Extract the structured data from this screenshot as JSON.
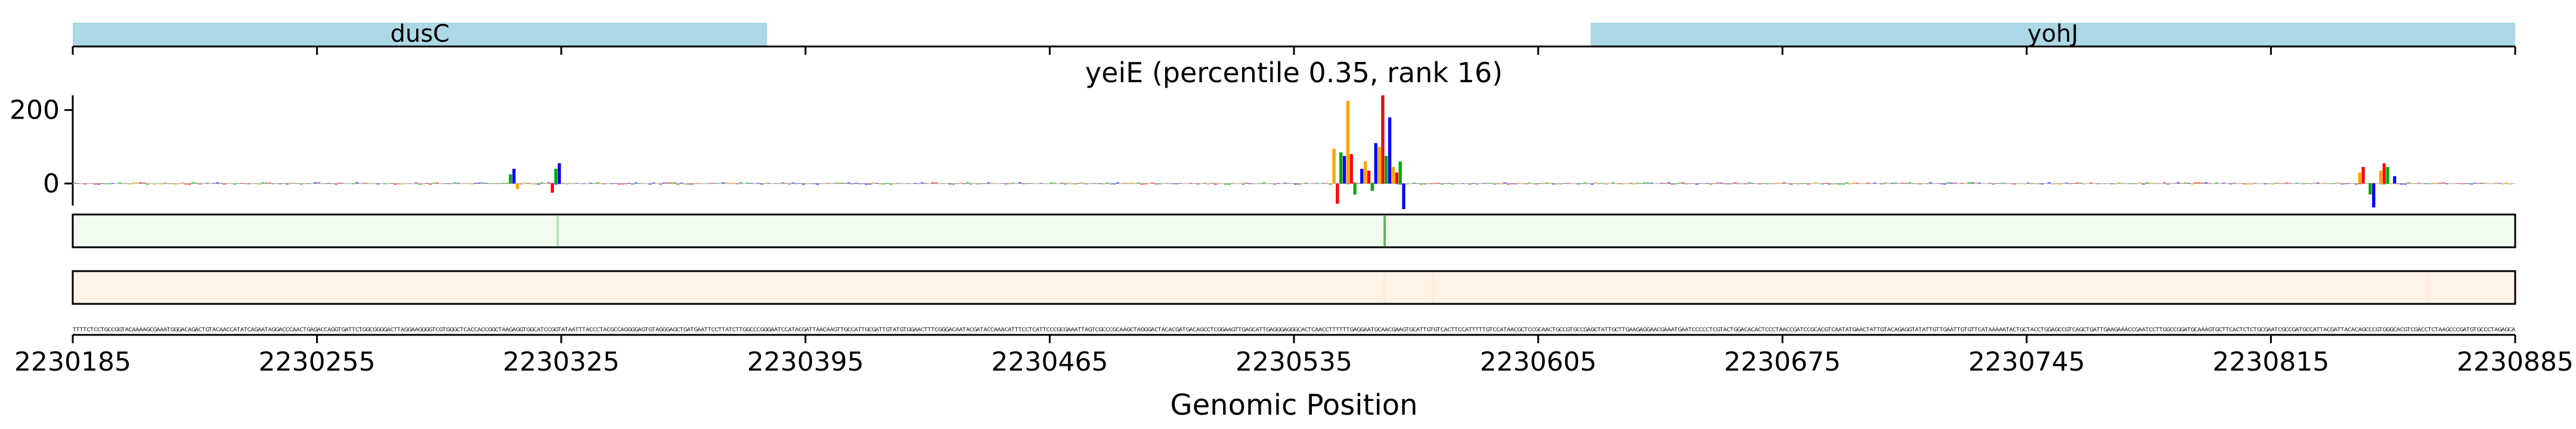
{
  "chart_data": {
    "type": "sequence-attribution-track",
    "title": "yeiE (percentile 0.35, rank 16)",
    "xlabel": "Genomic Position",
    "xlim": [
      2230185,
      2230885
    ],
    "x_ticks": [
      "2230185",
      "2230255",
      "2230325",
      "2230395",
      "2230465",
      "2230535",
      "2230605",
      "2230675",
      "2230745",
      "2230815",
      "2230885"
    ],
    "genes": [
      {
        "name": "yohJ",
        "start": 2230620,
        "end": 2230885,
        "color": "#add8e6"
      },
      {
        "name": "dusC",
        "start": 2230185,
        "end": 2230384,
        "color": "#add8e6"
      }
    ],
    "attribution": {
      "ylim": [
        -60,
        240
      ],
      "y_ticks": [
        "200",
        "0"
      ],
      "y_tick_values": [
        200,
        0
      ],
      "base_colors": {
        "A": "#00aa00",
        "C": "#0000ff",
        "G": "#ffa500",
        "T": "#ff0000"
      },
      "peaks": [
        {
          "x": 2230310,
          "y": 25
        },
        {
          "x": 2230311,
          "y": 40
        },
        {
          "x": 2230312,
          "y": -15
        },
        {
          "x": 2230322,
          "y": -25
        },
        {
          "x": 2230323,
          "y": 40
        },
        {
          "x": 2230324,
          "y": 55
        },
        {
          "x": 2230546,
          "y": 95
        },
        {
          "x": 2230547,
          "y": -55
        },
        {
          "x": 2230548,
          "y": 85
        },
        {
          "x": 2230549,
          "y": 75
        },
        {
          "x": 2230550,
          "y": 225
        },
        {
          "x": 2230551,
          "y": 80
        },
        {
          "x": 2230552,
          "y": -30
        },
        {
          "x": 2230554,
          "y": 40
        },
        {
          "x": 2230555,
          "y": 60
        },
        {
          "x": 2230556,
          "y": 35
        },
        {
          "x": 2230557,
          "y": -20
        },
        {
          "x": 2230558,
          "y": 110
        },
        {
          "x": 2230559,
          "y": 100
        },
        {
          "x": 2230560,
          "y": 240
        },
        {
          "x": 2230561,
          "y": 75
        },
        {
          "x": 2230562,
          "y": 180
        },
        {
          "x": 2230563,
          "y": 45
        },
        {
          "x": 2230564,
          "y": 30
        },
        {
          "x": 2230565,
          "y": 60
        },
        {
          "x": 2230566,
          "y": -70
        },
        {
          "x": 2230840,
          "y": 30
        },
        {
          "x": 2230841,
          "y": 45
        },
        {
          "x": 2230843,
          "y": -30
        },
        {
          "x": 2230844,
          "y": -65
        },
        {
          "x": 2230846,
          "y": 35
        },
        {
          "x": 2230847,
          "y": 55
        },
        {
          "x": 2230848,
          "y": 45
        },
        {
          "x": 2230850,
          "y": 20
        }
      ]
    },
    "green_track": {
      "color": "#f2fbf0",
      "lines": [
        {
          "x": 2230324,
          "strength": 0.3
        },
        {
          "x": 2230561,
          "strength": 0.8
        }
      ]
    },
    "orange_track": {
      "color": "#fff3e6",
      "lines": [
        {
          "x": 2230561,
          "strength": 0.2
        },
        {
          "x": 2230575,
          "strength": 0.15
        },
        {
          "x": 2230860,
          "strength": 0.15
        }
      ]
    }
  }
}
